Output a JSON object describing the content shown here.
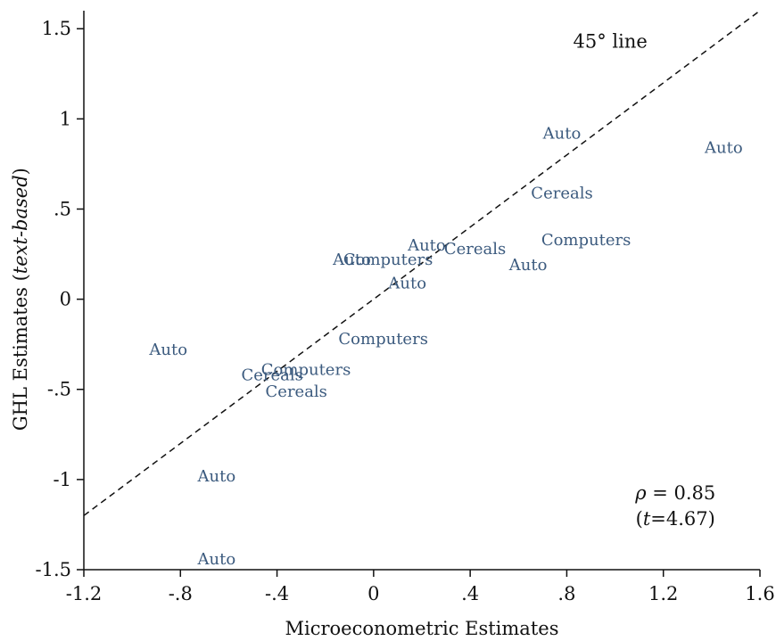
{
  "chart_data": {
    "type": "scatter",
    "xlabel": "Microeconometric Estimates",
    "ylabel_prefix": "GHL Estimates (",
    "ylabel_italic": "text-based",
    "ylabel_suffix": ")",
    "xlim": [
      -1.2,
      1.6
    ],
    "ylim": [
      -1.5,
      1.6
    ],
    "x_ticks": [
      {
        "value": -1.2,
        "label": "-1.2"
      },
      {
        "value": -0.8,
        "label": "-.8"
      },
      {
        "value": -0.4,
        "label": "-.4"
      },
      {
        "value": 0,
        "label": "0"
      },
      {
        "value": 0.4,
        "label": ".4"
      },
      {
        "value": 0.8,
        "label": ".8"
      },
      {
        "value": 1.2,
        "label": "1.2"
      },
      {
        "value": 1.6,
        "label": "1.6"
      }
    ],
    "y_ticks": [
      {
        "value": -1.5,
        "label": "-1.5"
      },
      {
        "value": -1,
        "label": "-1"
      },
      {
        "value": -0.5,
        "label": "-.5"
      },
      {
        "value": 0,
        "label": "0"
      },
      {
        "value": 0.5,
        "label": ".5"
      },
      {
        "value": 1,
        "label": "1"
      },
      {
        "value": 1.5,
        "label": "1.5"
      }
    ],
    "label_color": "#3b5a7e",
    "points": [
      {
        "x": 0.78,
        "y": 0.92,
        "label": "Auto"
      },
      {
        "x": 1.45,
        "y": 0.84,
        "label": "Auto"
      },
      {
        "x": 0.78,
        "y": 0.59,
        "label": "Cereals"
      },
      {
        "x": 0.88,
        "y": 0.33,
        "label": "Computers"
      },
      {
        "x": 0.22,
        "y": 0.3,
        "label": "Auto"
      },
      {
        "x": 0.42,
        "y": 0.28,
        "label": "Cereals"
      },
      {
        "x": 0.64,
        "y": 0.19,
        "label": "Auto"
      },
      {
        "x": -0.09,
        "y": 0.22,
        "label": "Auto"
      },
      {
        "x": 0.06,
        "y": 0.22,
        "label": "Computers"
      },
      {
        "x": 0.14,
        "y": 0.09,
        "label": "Auto"
      },
      {
        "x": 0.04,
        "y": -0.22,
        "label": "Computers"
      },
      {
        "x": -0.85,
        "y": -0.28,
        "label": "Auto"
      },
      {
        "x": -0.28,
        "y": -0.39,
        "label": "Computers"
      },
      {
        "x": -0.42,
        "y": -0.42,
        "label": "Cereals"
      },
      {
        "x": -0.32,
        "y": -0.51,
        "label": "Cereals"
      },
      {
        "x": -0.65,
        "y": -0.98,
        "label": "Auto"
      },
      {
        "x": -0.65,
        "y": -1.44,
        "label": "Auto"
      }
    ],
    "reference_line": {
      "label": "45° line",
      "label_x": 0.98,
      "label_y": 1.43
    },
    "stats": {
      "rho_symbol": "ρ",
      "rho_text": " = 0.85",
      "t_open": "(",
      "t_symbol": "t",
      "t_text": "=4.67)"
    },
    "stats_position": {
      "x": 1.25,
      "y": -1.11
    },
    "grid": false,
    "legend": "none"
  }
}
